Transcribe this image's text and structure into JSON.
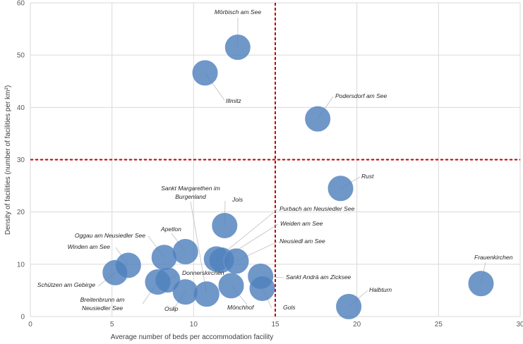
{
  "chart_data": {
    "type": "scatter",
    "title": "",
    "xlabel": "Average number of beds per accommodation facility",
    "ylabel": "Density of facilities (number of facilities per km²)",
    "xlim": [
      0,
      30
    ],
    "ylim": [
      0,
      60
    ],
    "xticks": [
      "0",
      "5",
      "10",
      "15",
      "20",
      "25",
      "30"
    ],
    "yticks": [
      "0",
      "10",
      "20",
      "30",
      "40",
      "50",
      "60"
    ],
    "grid": true,
    "legend": "none",
    "thresholds": {
      "x": 15,
      "y": 30,
      "color": "#c00000",
      "style": "dashed"
    },
    "marker_color": "#4f81bd",
    "points": [
      {
        "label": [
          "Mörbisch am See"
        ],
        "x": 12.7,
        "y": 51.5
      },
      {
        "label": [
          "Illmitz"
        ],
        "x": 10.7,
        "y": 46.6
      },
      {
        "label": [
          "Podersdorf am See"
        ],
        "x": 17.6,
        "y": 37.8
      },
      {
        "label": [
          "Rust"
        ],
        "x": 19.0,
        "y": 24.5
      },
      {
        "label": [
          "Frauenkirchen"
        ],
        "x": 27.6,
        "y": 6.3
      },
      {
        "label": [
          "Halbturn"
        ],
        "x": 19.5,
        "y": 1.9
      },
      {
        "label": [
          "Jois"
        ],
        "x": 11.9,
        "y": 17.4
      },
      {
        "label": [
          "Purbach am Neusiedler See"
        ],
        "x": 11.4,
        "y": 11.0
      },
      {
        "label": [
          "Weiden am See"
        ],
        "x": 11.7,
        "y": 10.8
      },
      {
        "label": [
          "Neusiedl am See"
        ],
        "x": 12.6,
        "y": 10.6
      },
      {
        "label": [
          "Sankt Andrä am Zicksee"
        ],
        "x": 14.1,
        "y": 7.7
      },
      {
        "label": [
          "Gols"
        ],
        "x": 14.2,
        "y": 5.4
      },
      {
        "label": [
          "Mönchhof"
        ],
        "x": 12.3,
        "y": 5.9
      },
      {
        "label": [
          "Sankt Margarethen im",
          "Burgenland"
        ],
        "x": 10.8,
        "y": 4.3
      },
      {
        "label": [
          "Oslip"
        ],
        "x": 9.5,
        "y": 4.7
      },
      {
        "label": [
          "Apetlon"
        ],
        "x": 9.5,
        "y": 12.4
      },
      {
        "label": [
          "Oggau am Neusiedler See"
        ],
        "x": 8.2,
        "y": 11.3
      },
      {
        "label": [
          "Winden am See"
        ],
        "x": 6.0,
        "y": 9.8
      },
      {
        "label": [
          "Schützen am Gebirge"
        ],
        "x": 5.2,
        "y": 8.4
      },
      {
        "label": [
          "Breitenbrunn am",
          "Neusiedler See"
        ],
        "x": 7.8,
        "y": 6.6
      },
      {
        "label": [
          "Donnerskirchen"
        ],
        "x": 8.4,
        "y": 7.0
      }
    ]
  }
}
